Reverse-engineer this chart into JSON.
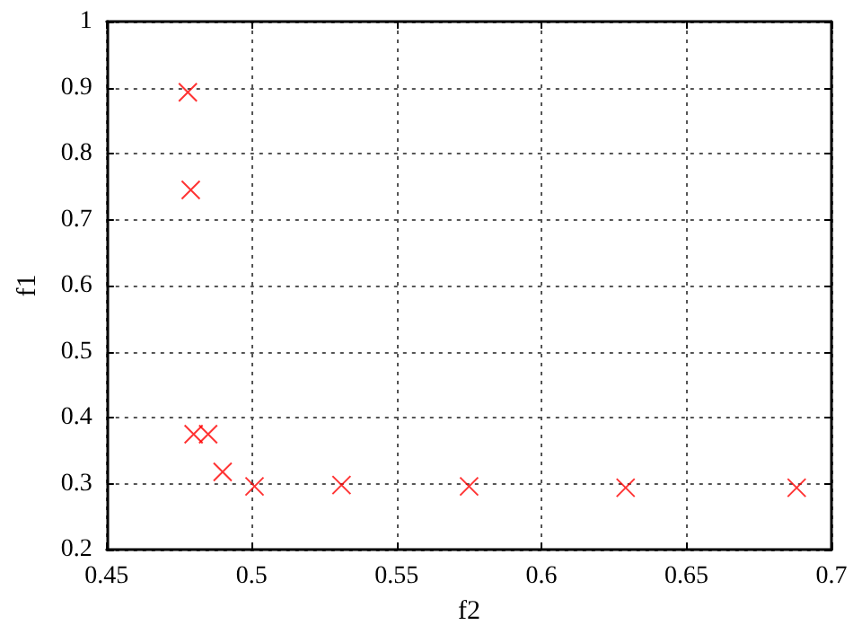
{
  "chart_data": {
    "type": "scatter",
    "xlabel": "f2",
    "ylabel": "f1",
    "x": [
      0.478,
      0.479,
      0.48,
      0.485,
      0.49,
      0.501,
      0.531,
      0.575,
      0.629,
      0.688
    ],
    "series": [
      {
        "color": "#ff0000",
        "values": [
          0.893,
          0.745,
          0.375,
          0.375,
          0.318,
          0.296,
          0.298,
          0.296,
          0.294,
          0.294
        ]
      }
    ],
    "xlim": [
      0.45,
      0.7
    ],
    "xticks": [
      0.45,
      0.5,
      0.55,
      0.6,
      0.65,
      0.7
    ],
    "ylim": [
      0.2,
      1
    ],
    "yticks": [
      0.2,
      0.3,
      0.4,
      0.5,
      0.6,
      0.7,
      0.8,
      0.9,
      1
    ],
    "grid": true,
    "marker": "cross"
  }
}
